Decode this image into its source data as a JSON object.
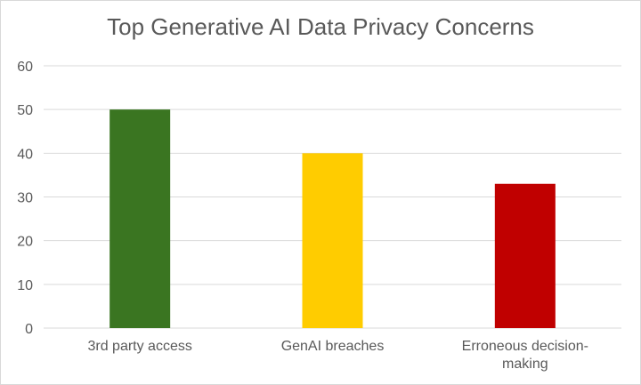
{
  "chart_data": {
    "type": "bar",
    "title": "Top Generative AI Data Privacy Concerns",
    "categories": [
      "3rd party access",
      "GenAI breaches",
      "Erroneous decision-making"
    ],
    "category_label_lines": [
      [
        "3rd party access"
      ],
      [
        "GenAI breaches"
      ],
      [
        "Erroneous decision-",
        "making"
      ]
    ],
    "values": [
      50,
      40,
      33
    ],
    "bar_colors": [
      "#3a7521",
      "#ffcc00",
      "#c00000"
    ],
    "ylim": [
      0,
      60
    ],
    "yticks": [
      0,
      10,
      20,
      30,
      40,
      50,
      60
    ],
    "grid": true,
    "legend": "none",
    "xlabel": "",
    "ylabel": ""
  }
}
